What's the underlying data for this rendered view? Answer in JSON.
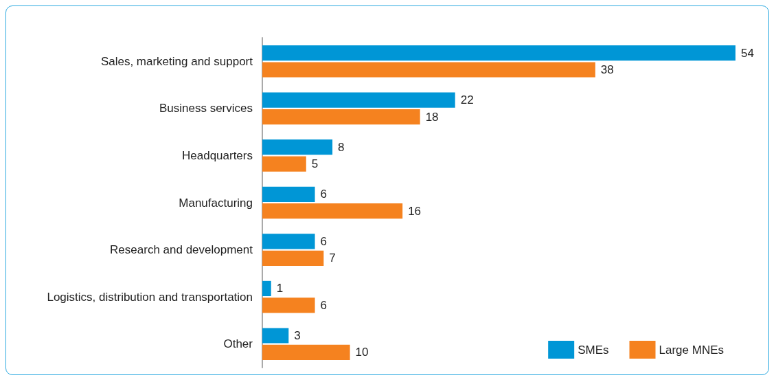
{
  "chart_data": {
    "type": "bar",
    "orientation": "horizontal",
    "tick_labels": "y",
    "data_labels": true,
    "legend": "bottom right",
    "categories": [
      "Sales, marketing and support",
      "Business services",
      "Headquarters",
      "Manufacturing",
      "Research and development",
      "Logistics, distribution and transportation",
      "Other"
    ],
    "series": [
      {
        "name": "SMEs",
        "color": "#0096d6",
        "values": [
          54,
          22,
          8,
          6,
          6,
          1,
          3
        ]
      },
      {
        "name": "Large MNEs",
        "color": "#f5821f",
        "values": [
          38,
          18,
          5,
          16,
          7,
          6,
          10
        ]
      }
    ]
  }
}
